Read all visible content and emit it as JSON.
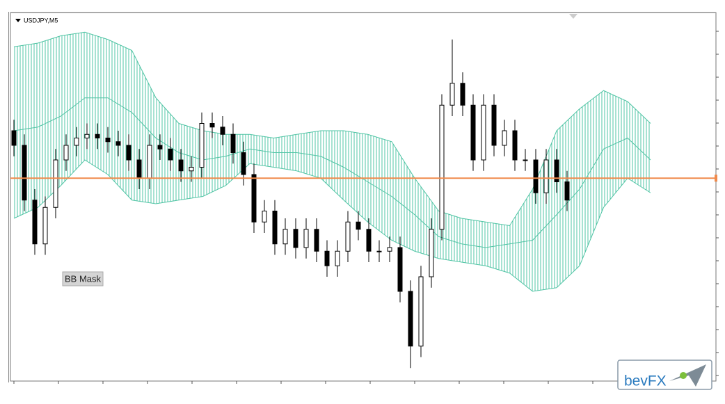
{
  "chart_data": {
    "type": "candlestick",
    "title": "USDJPY,M5",
    "button": "BB Mask",
    "watermark": "bevFX",
    "ylim": [
      0,
      100
    ],
    "xlim": [
      0,
      67
    ],
    "open": [
      68,
      64,
      49,
      37,
      47,
      60,
      64,
      66,
      67,
      66,
      65,
      64,
      60,
      55,
      64,
      63,
      60,
      57,
      58,
      70,
      69,
      67,
      62,
      56,
      43,
      46,
      37,
      41,
      36,
      41,
      35,
      31,
      35,
      43,
      41,
      35,
      35,
      36,
      24,
      9,
      28,
      41,
      75,
      81,
      75,
      60,
      75,
      64,
      68,
      60,
      60,
      51,
      60,
      54
    ],
    "high": [
      71,
      67,
      52,
      50,
      63,
      67,
      69,
      70,
      70,
      69,
      68,
      67,
      63,
      67,
      67,
      66,
      63,
      61,
      73,
      73,
      72,
      70,
      65,
      59,
      49,
      49,
      44,
      44,
      44,
      44,
      38,
      38,
      46,
      46,
      44,
      38,
      39,
      39,
      27,
      31,
      44,
      78,
      93,
      84,
      78,
      78,
      78,
      71,
      71,
      63,
      63,
      63,
      63,
      57
    ],
    "low": [
      61,
      46,
      34,
      34,
      44,
      57,
      61,
      63,
      63,
      62,
      61,
      57,
      52,
      52,
      60,
      57,
      54,
      54,
      55,
      66,
      64,
      59,
      53,
      40,
      40,
      34,
      34,
      33,
      33,
      32,
      28,
      28,
      32,
      38,
      32,
      32,
      32,
      21,
      3,
      6,
      25,
      38,
      72,
      72,
      57,
      57,
      61,
      61,
      57,
      57,
      48,
      48,
      51,
      46
    ],
    "close": [
      64,
      49,
      37,
      47,
      60,
      64,
      66,
      67,
      66,
      65,
      64,
      60,
      55,
      64,
      63,
      60,
      57,
      58,
      70,
      69,
      67,
      62,
      56,
      43,
      46,
      37,
      41,
      36,
      41,
      35,
      31,
      35,
      43,
      41,
      35,
      35,
      36,
      24,
      9,
      28,
      41,
      75,
      81,
      75,
      60,
      75,
      64,
      68,
      60,
      60,
      51,
      60,
      54,
      49
    ],
    "bands": {
      "x": [
        0,
        2.3,
        4.5,
        6.8,
        9,
        11.3,
        13.6,
        15.8,
        18.1,
        20.3,
        22.6,
        24.9,
        27.1,
        29.4,
        31.6,
        33.9,
        36.2,
        38.4,
        40.7,
        42.9,
        45.2,
        47.5,
        49.7,
        52,
        54.2,
        56.5,
        58.8,
        61
      ],
      "color": "#4fc4a4",
      "upper": [
        91,
        92,
        94,
        95,
        93,
        90,
        77,
        70,
        68,
        67,
        67,
        66,
        67,
        68,
        68,
        67,
        65,
        55,
        46,
        44,
        43,
        42,
        52,
        68,
        74,
        79,
        76,
        70
      ],
      "middle": [
        68,
        69,
        72,
        77,
        77,
        73,
        66,
        62,
        60,
        61,
        63,
        62,
        62,
        61,
        58,
        54,
        50,
        45,
        39,
        37,
        36,
        37,
        38,
        45,
        52,
        63,
        66,
        60
      ],
      "lower": [
        44,
        47,
        53,
        60,
        56,
        49,
        48,
        49,
        50,
        53,
        59,
        58,
        57,
        55,
        49,
        43,
        38,
        35,
        33,
        32,
        31,
        29,
        24,
        25,
        31,
        47,
        55,
        51
      ]
    },
    "hline": {
      "value": 55,
      "color": "#f08a4b"
    }
  }
}
